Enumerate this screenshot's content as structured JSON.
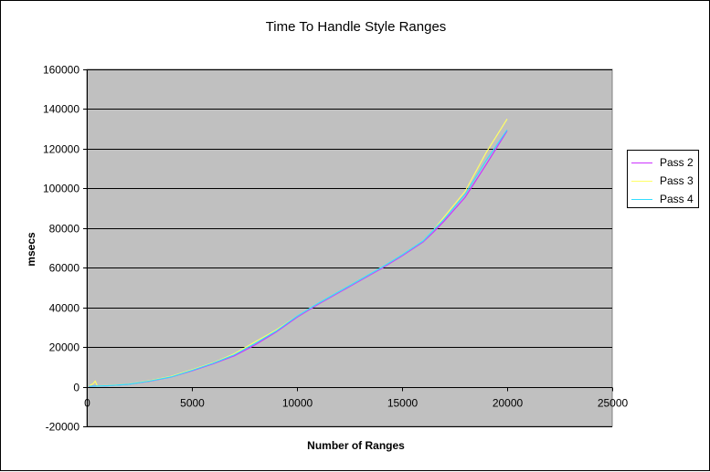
{
  "chart_data": {
    "type": "line",
    "title": "Time To Handle Style Ranges",
    "xlabel": "Number of Ranges",
    "ylabel": "msecs",
    "xlim": [
      0,
      25000
    ],
    "ylim": [
      -20000,
      160000
    ],
    "xticks": [
      0,
      5000,
      10000,
      15000,
      20000,
      25000
    ],
    "yticks": [
      -20000,
      0,
      20000,
      40000,
      60000,
      80000,
      100000,
      120000,
      140000,
      160000
    ],
    "grid": "horizontal",
    "legend_position": "right",
    "plot_background": "#c0c0c0",
    "series": [
      {
        "name": "Pass 2",
        "color": "#cc33ff",
        "x": [
          100,
          1000,
          2000,
          3000,
          4000,
          5000,
          6000,
          7000,
          8000,
          9000,
          10000,
          11000,
          12000,
          13000,
          14000,
          15000,
          16000,
          16500,
          17000,
          18000,
          19000,
          20000
        ],
        "y": [
          200,
          500,
          1200,
          2800,
          4800,
          8000,
          11500,
          15500,
          21000,
          27500,
          35000,
          41500,
          47500,
          53500,
          59500,
          66000,
          73000,
          78000,
          83500,
          95500,
          112000,
          129000
        ]
      },
      {
        "name": "Pass 3",
        "color": "#ffff66",
        "x": [
          100,
          300,
          400,
          500,
          1000,
          2000,
          3000,
          4000,
          5000,
          6000,
          7000,
          7500,
          8000,
          9000,
          10000,
          11000,
          12000,
          13000,
          14000,
          15000,
          16000,
          16500,
          17000,
          18000,
          19000,
          20000
        ],
        "y": [
          300,
          1500,
          2800,
          400,
          600,
          1300,
          3000,
          5200,
          8500,
          12000,
          16500,
          19500,
          22500,
          28500,
          35500,
          42000,
          48000,
          54000,
          60000,
          66500,
          73500,
          79000,
          85500,
          98500,
          118000,
          135000
        ]
      },
      {
        "name": "Pass 4",
        "color": "#33ddff",
        "x": [
          100,
          1000,
          2000,
          3000,
          4000,
          5000,
          6000,
          7000,
          8000,
          9000,
          10000,
          11000,
          12000,
          13000,
          14000,
          15000,
          16000,
          16500,
          17000,
          18000,
          19000,
          20000
        ],
        "y": [
          200,
          500,
          1200,
          2900,
          4900,
          8200,
          11800,
          16000,
          21800,
          28000,
          35500,
          42000,
          48000,
          54000,
          60000,
          66500,
          73500,
          79000,
          84500,
          97000,
          114000,
          129500
        ]
      }
    ]
  }
}
